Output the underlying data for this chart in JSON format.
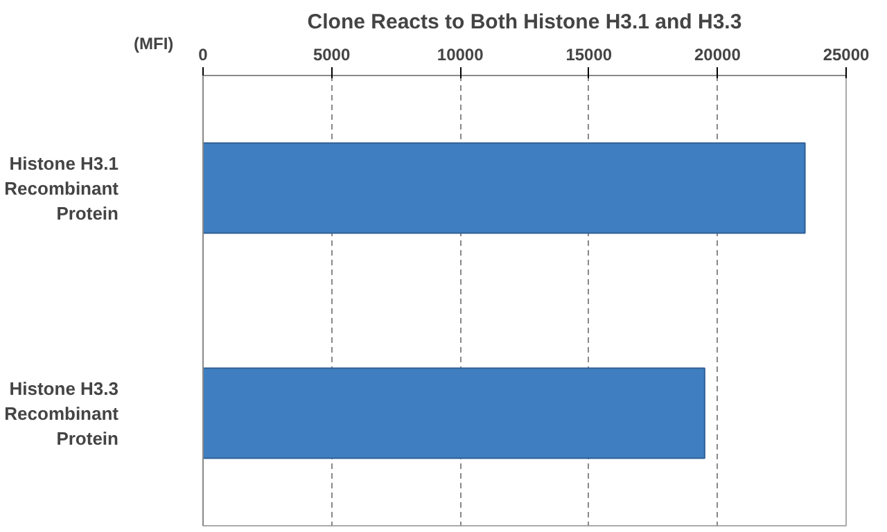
{
  "chart_data": {
    "type": "bar",
    "orientation": "horizontal",
    "title": "Clone Reacts to Both Histone H3.1 and H3.3",
    "xlabel": "(MFI)",
    "categories": [
      "Histone H3.1\nRecombinant\nProtein",
      "Histone H3.3\nRecombinant\nProtein"
    ],
    "values": [
      23400,
      19500
    ],
    "color": "#3f7fc1",
    "xlim": [
      0,
      25000
    ],
    "xticks": [
      0,
      5000,
      10000,
      15000,
      20000,
      25000
    ],
    "grid": "x"
  }
}
